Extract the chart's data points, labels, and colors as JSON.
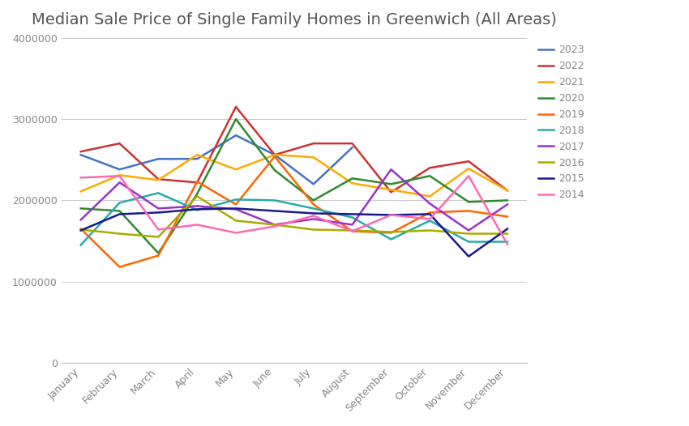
{
  "title": "Median Sale Price of Single Family Homes in Greenwich (All Areas)",
  "months": [
    "January",
    "February",
    "March",
    "April",
    "May",
    "June",
    "July",
    "August",
    "September",
    "October",
    "November",
    "December"
  ],
  "series": {
    "2023": {
      "color": "#4472C4",
      "values": [
        2560000,
        2380000,
        2510000,
        2510000,
        2800000,
        2560000,
        2200000,
        2650000,
        null,
        null,
        null,
        null
      ]
    },
    "2022": {
      "color": "#CC3333",
      "values": [
        2600000,
        2700000,
        2260000,
        2220000,
        3150000,
        2560000,
        2700000,
        2700000,
        2100000,
        2400000,
        2480000,
        2120000
      ]
    },
    "2021": {
      "color": "#FFAA00",
      "values": [
        2110000,
        2310000,
        2250000,
        2560000,
        2380000,
        2560000,
        2530000,
        2210000,
        2130000,
        2050000,
        2390000,
        2120000
      ]
    },
    "2020": {
      "color": "#2E8B2E",
      "values": [
        1900000,
        1870000,
        1350000,
        2080000,
        3000000,
        2370000,
        2000000,
        2270000,
        2200000,
        2300000,
        1980000,
        2000000
      ]
    },
    "2019": {
      "color": "#FF6600",
      "values": [
        1650000,
        1180000,
        1320000,
        2230000,
        1950000,
        2540000,
        1950000,
        1620000,
        1600000,
        1850000,
        1870000,
        1800000
      ]
    },
    "2018": {
      "color": "#29AAAA",
      "values": [
        1450000,
        1970000,
        2090000,
        1880000,
        2010000,
        2000000,
        1900000,
        1790000,
        1520000,
        1750000,
        1490000,
        1490000
      ]
    },
    "2017": {
      "color": "#9933CC",
      "values": [
        1760000,
        2220000,
        1900000,
        1930000,
        1890000,
        1700000,
        1770000,
        1700000,
        2380000,
        1960000,
        1630000,
        1950000
      ]
    },
    "2016": {
      "color": "#AAAA00",
      "values": [
        1640000,
        1590000,
        1550000,
        2050000,
        1750000,
        1700000,
        1640000,
        1630000,
        1610000,
        1630000,
        1590000,
        1590000
      ]
    },
    "2015": {
      "color": "#1A1A8C",
      "values": [
        1630000,
        1830000,
        1850000,
        1890000,
        1900000,
        1870000,
        1840000,
        1830000,
        1820000,
        1830000,
        1310000,
        1650000
      ]
    },
    "2014": {
      "color": "#FF69B4",
      "values": [
        2280000,
        2300000,
        1640000,
        1700000,
        1600000,
        1680000,
        1810000,
        1620000,
        1820000,
        1770000,
        2300000,
        1460000
      ]
    }
  },
  "ylim": [
    0,
    4000000
  ],
  "yticks": [
    0,
    1000000,
    2000000,
    3000000,
    4000000
  ],
  "background_color": "#ffffff",
  "grid_color": "#cccccc",
  "title_fontsize": 14,
  "tick_fontsize": 9,
  "legend_fontsize": 9
}
